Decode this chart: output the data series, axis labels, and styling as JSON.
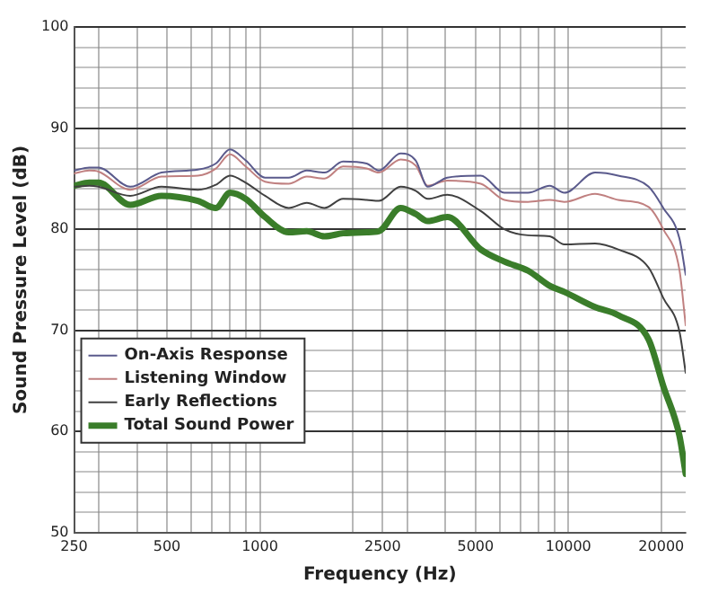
{
  "chart_data": {
    "type": "line",
    "xlabel": "Frequency (Hz)",
    "ylabel": "Sound Pressure Level (dB)",
    "log": "x",
    "grid": true,
    "legend": "bottom left",
    "marker": "none",
    "line_style": "solid",
    "xlim": [
      250,
      24000
    ],
    "xticks": [
      250,
      {
        "value": 300,
        "label": null
      },
      {
        "value": 400,
        "label": null
      },
      500,
      {
        "value": 600,
        "label": null
      },
      {
        "value": 700,
        "label": null
      },
      {
        "value": 800,
        "label": null
      },
      {
        "value": 900,
        "label": null
      },
      1000,
      {
        "value": 2000,
        "label": null
      },
      2500,
      {
        "value": 3000,
        "label": null
      },
      {
        "value": 4000,
        "label": null
      },
      5000,
      {
        "value": 6000,
        "label": null
      },
      {
        "value": 7000,
        "label": null
      },
      {
        "value": 8000,
        "label": null
      },
      {
        "value": 9000,
        "label": null
      },
      10000,
      20000
    ],
    "ylim": [
      50,
      100
    ],
    "yticks": [
      50,
      {
        "value": 52,
        "label": null
      },
      {
        "value": 54,
        "label": null
      },
      {
        "value": 56,
        "label": null
      },
      {
        "value": 58,
        "label": null
      },
      60,
      {
        "value": 62,
        "label": null
      },
      {
        "value": 64,
        "label": null
      },
      {
        "value": 66,
        "label": null
      },
      {
        "value": 68,
        "label": null
      },
      70,
      {
        "value": 72,
        "label": null
      },
      {
        "value": 74,
        "label": null
      },
      {
        "value": 76,
        "label": null
      },
      {
        "value": 78,
        "label": null
      },
      80,
      {
        "value": 82,
        "label": null
      },
      {
        "value": 84,
        "label": null
      },
      {
        "value": 86,
        "label": null
      },
      {
        "value": 88,
        "label": null
      },
      90,
      {
        "value": 92,
        "label": null
      },
      {
        "value": 94,
        "label": null
      },
      {
        "value": 96,
        "label": null
      },
      {
        "value": 98,
        "label": null
      },
      100
    ],
    "x": [
      250,
      280,
      300,
      380,
      480,
      630,
      720,
      800,
      900,
      1040,
      1240,
      1420,
      1620,
      1860,
      2220,
      2430,
      2860,
      3200,
      3500,
      4050,
      5200,
      6200,
      7400,
      8700,
      9700,
      12200,
      14500,
      18200,
      20300,
      22900,
      24000
    ],
    "series": [
      {
        "name": "On-Axis Response",
        "color": "#5a5a8c",
        "values": [
          85.8,
          86.1,
          86.1,
          84.2,
          85.6,
          85.9,
          86.5,
          87.9,
          86.8,
          85.1,
          85.1,
          85.8,
          85.6,
          86.7,
          86.5,
          85.8,
          87.5,
          86.8,
          84.2,
          85.1,
          85.3,
          83.6,
          83.6,
          84.3,
          83.6,
          85.6,
          85.3,
          84.2,
          82.1,
          79.1,
          75.5
        ]
      },
      {
        "name": "Listening Window",
        "color": "#c08080",
        "values": [
          85.5,
          85.8,
          85.7,
          83.9,
          85.2,
          85.3,
          86,
          87.4,
          86.2,
          84.7,
          84.5,
          85.2,
          85,
          86.2,
          86,
          85.6,
          86.9,
          86.3,
          84.3,
          84.8,
          84.5,
          82.9,
          82.7,
          82.9,
          82.7,
          83.5,
          82.9,
          82.2,
          80,
          76,
          70.5
        ]
      },
      {
        "name": "Early Reflections",
        "color": "#404040",
        "values": [
          84.2,
          84.3,
          84.2,
          83.3,
          84.2,
          83.9,
          84.4,
          85.3,
          84.6,
          83.3,
          82.1,
          82.6,
          82.1,
          83,
          82.9,
          82.8,
          84.2,
          83.8,
          83,
          83.4,
          81.8,
          80,
          79.4,
          79.3,
          78.5,
          78.6,
          78,
          76.2,
          73.2,
          69.9,
          65.8
        ]
      },
      {
        "name": "Total Sound Power",
        "color": "#3a7d2a",
        "values": [
          84.3,
          84.6,
          84.6,
          82.4,
          83.3,
          82.8,
          82.1,
          83.6,
          83,
          81.2,
          79.7,
          79.8,
          79.3,
          79.6,
          79.7,
          79.8,
          82.1,
          81.5,
          80.8,
          81.2,
          78,
          76.8,
          75.9,
          74.4,
          73.8,
          72.3,
          71.5,
          69.1,
          64.5,
          59.6,
          55.8
        ]
      }
    ]
  }
}
